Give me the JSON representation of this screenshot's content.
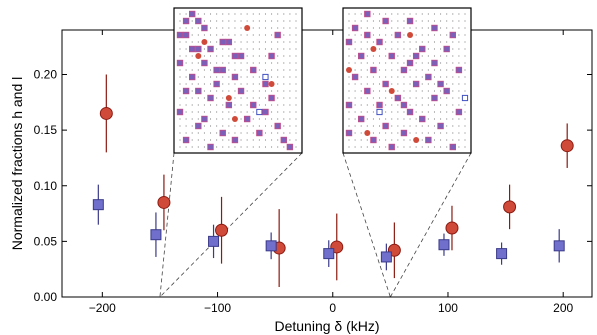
{
  "chart_data": {
    "type": "scatter",
    "xlabel": "Detuning δ (kHz)",
    "ylabel": "Normalized fractions h and l",
    "xlim": [
      -235,
      225
    ],
    "ylim": [
      0,
      0.24
    ],
    "xticks": [
      -200,
      -100,
      0,
      100,
      200
    ],
    "xtick_labels": [
      "−200",
      "−100",
      "0",
      "100",
      "200"
    ],
    "yticks": [
      0,
      0.05,
      0.1,
      0.15,
      0.2
    ],
    "ytick_labels": [
      "0.00",
      "0.05",
      "0.10",
      "0.15",
      "0.20"
    ],
    "grid": false,
    "series": [
      {
        "marker": "circle",
        "color": "#d04a3a",
        "edge_color": "#8b1a10",
        "x": [
          -200,
          -150,
          -100,
          -50,
          0,
          50,
          100,
          150,
          200
        ],
        "y": [
          0.165,
          0.085,
          0.06,
          0.044,
          0.045,
          0.042,
          0.062,
          0.081,
          0.136
        ],
        "err": [
          0.035,
          0.025,
          0.03,
          0.035,
          0.03,
          0.025,
          0.02,
          0.02,
          0.02
        ]
      },
      {
        "marker": "square",
        "color": "#7070cc",
        "edge_color": "#3a3a8a",
        "x": [
          -200,
          -150,
          -100,
          -50,
          0,
          50,
          100,
          150,
          200
        ],
        "y": [
          0.083,
          0.056,
          0.05,
          0.046,
          0.039,
          0.036,
          0.047,
          0.039,
          0.046
        ],
        "err": [
          0.018,
          0.02,
          0.015,
          0.012,
          0.012,
          0.012,
          0.01,
          0.01,
          0.015
        ]
      }
    ],
    "insets": [
      {
        "grid_size": 20,
        "points_to_x": -150,
        "filled_squares": [
          [
            0,
            2
          ],
          [
            1,
            1
          ],
          [
            1,
            3
          ],
          [
            2,
            4
          ],
          [
            3,
            0
          ],
          [
            3,
            1
          ],
          [
            4,
            7
          ],
          [
            4,
            8
          ],
          [
            5,
            2
          ],
          [
            5,
            3
          ],
          [
            5,
            5
          ],
          [
            6,
            9
          ],
          [
            6,
            10
          ],
          [
            7,
            0
          ],
          [
            7,
            4
          ],
          [
            8,
            6
          ],
          [
            8,
            7
          ],
          [
            8,
            12
          ],
          [
            9,
            2
          ],
          [
            9,
            9
          ],
          [
            10,
            14
          ],
          [
            11,
            1
          ],
          [
            11,
            3
          ],
          [
            11,
            10
          ],
          [
            12,
            5
          ],
          [
            12,
            15
          ],
          [
            13,
            8
          ],
          [
            13,
            12
          ],
          [
            14,
            0
          ],
          [
            14,
            14
          ],
          [
            15,
            4
          ],
          [
            15,
            11
          ],
          [
            16,
            3
          ],
          [
            16,
            16
          ],
          [
            17,
            7
          ],
          [
            17,
            13
          ],
          [
            18,
            1
          ],
          [
            18,
            9
          ],
          [
            18,
            17
          ],
          [
            19,
            5
          ],
          [
            19,
            18
          ],
          [
            10,
            6
          ],
          [
            6,
            15
          ],
          [
            3,
            16
          ]
        ],
        "open_squares": [
          [
            9,
            14
          ],
          [
            14,
            13
          ]
        ],
        "circles": [
          [
            4,
            4
          ],
          [
            10,
            15
          ],
          [
            12,
            8
          ],
          [
            15,
            9
          ],
          [
            2,
            11
          ],
          [
            6,
            3
          ]
        ]
      },
      {
        "grid_size": 20,
        "points_to_x": 50,
        "filled_squares": [
          [
            0,
            3
          ],
          [
            1,
            6
          ],
          [
            1,
            10
          ],
          [
            2,
            1
          ],
          [
            2,
            14
          ],
          [
            3,
            8
          ],
          [
            3,
            17
          ],
          [
            4,
            0
          ],
          [
            4,
            5
          ],
          [
            5,
            12
          ],
          [
            5,
            16
          ],
          [
            6,
            2
          ],
          [
            6,
            7
          ],
          [
            7,
            10
          ],
          [
            7,
            14
          ],
          [
            8,
            4
          ],
          [
            8,
            9
          ],
          [
            8,
            18
          ],
          [
            9,
            1
          ],
          [
            9,
            13
          ],
          [
            10,
            6
          ],
          [
            10,
            11
          ],
          [
            11,
            3
          ],
          [
            11,
            16
          ],
          [
            12,
            8
          ],
          [
            12,
            14
          ],
          [
            13,
            0
          ],
          [
            13,
            5
          ],
          [
            14,
            10
          ],
          [
            14,
            18
          ],
          [
            15,
            2
          ],
          [
            15,
            12
          ],
          [
            16,
            6
          ],
          [
            16,
            15
          ],
          [
            17,
            0
          ],
          [
            17,
            9
          ],
          [
            18,
            4
          ],
          [
            18,
            13
          ],
          [
            19,
            7
          ],
          [
            19,
            17
          ],
          [
            10,
            15
          ],
          [
            6,
            11
          ],
          [
            3,
            3
          ],
          [
            13,
            9
          ]
        ],
        "open_squares": [
          [
            14,
            5
          ],
          [
            12,
            19
          ]
        ],
        "circles": [
          [
            3,
            10
          ],
          [
            8,
            0
          ],
          [
            17,
            3
          ],
          [
            11,
            7
          ],
          [
            5,
            4
          ],
          [
            18,
            11
          ]
        ]
      }
    ]
  }
}
